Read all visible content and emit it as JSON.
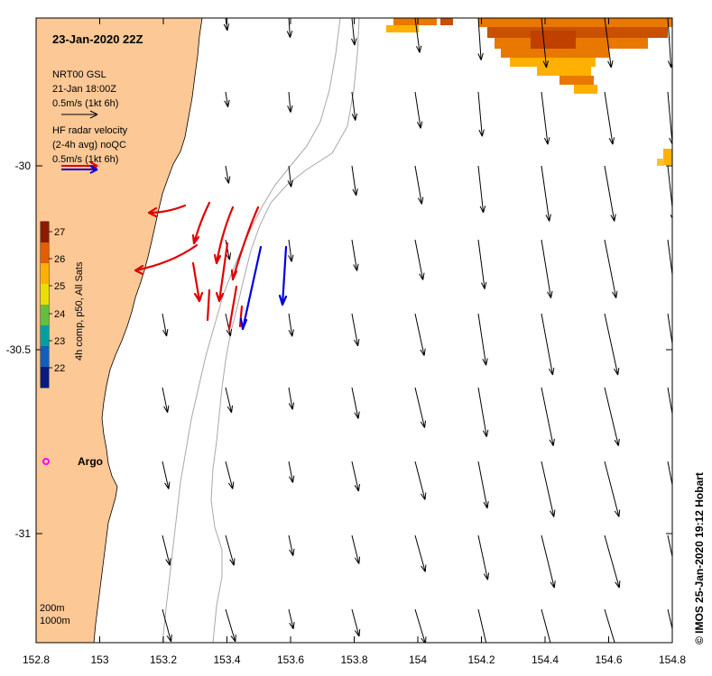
{
  "map": {
    "title": "23-Jan-2020 22Z",
    "model_legend": {
      "line1": "NRT00 GSL",
      "line2": "21-Jan 18:00Z",
      "line3": "0.5m/s (1kt 6h)"
    },
    "radar_legend": {
      "line1": "HF radar velocity",
      "line2": "(2-4h avg) noQC",
      "line3": "0.5m/s (1kt 6h)"
    },
    "colorbar": {
      "label": "4h comp, p50, All Sats",
      "ticks": [
        "27",
        "26",
        "25",
        "24",
        "23",
        "22"
      ],
      "colors": [
        "#8b1a00",
        "#e65c00",
        "#ffb000",
        "#e8e000",
        "#60c040",
        "#00a0a0",
        "#1060c0",
        "#0a1a80"
      ]
    },
    "marker_label": "Argo",
    "isobaths": {
      "label_200": "200m",
      "label_1000": "1000m"
    },
    "footer": "© IMOS 25-Jan-2020 19:12 Hobart",
    "x_ticks": [
      "152.8",
      "153",
      "153.2",
      "153.4",
      "153.6",
      "153.8",
      "154",
      "154.2",
      "154.4",
      "154.6",
      "154.8"
    ],
    "y_ticks": [
      "-30",
      "-30.5",
      "-31"
    ],
    "colors": {
      "land": "#fbc896",
      "model_arrow": "#000000",
      "radar_red": "#e00000",
      "radar_blue": "#0000e0",
      "sst_dark": "#c85000",
      "sst_mid": "#e87800",
      "sst_light": "#ffb000",
      "marker": "#ff00ff"
    }
  }
}
